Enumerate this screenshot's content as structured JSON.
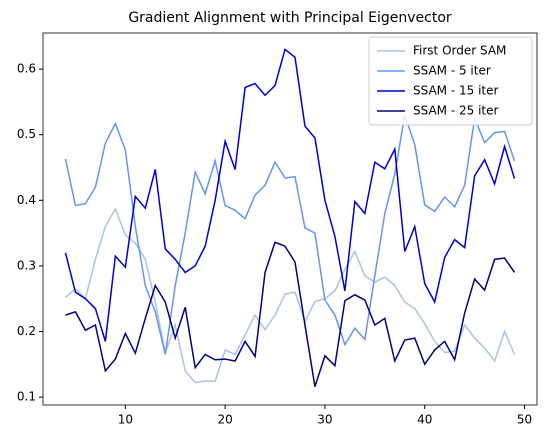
{
  "chart_data": {
    "type": "line",
    "title": "Gradient Alignment with Principal Eigenvector",
    "x": [
      4,
      5,
      6,
      7,
      8,
      9,
      10,
      11,
      12,
      13,
      14,
      15,
      16,
      17,
      18,
      19,
      20,
      21,
      22,
      23,
      24,
      25,
      26,
      27,
      28,
      29,
      30,
      31,
      32,
      33,
      34,
      35,
      36,
      37,
      38,
      39,
      40,
      41,
      42,
      43,
      44,
      45,
      46,
      47,
      48,
      49
    ],
    "series": [
      {
        "name": "First Order SAM",
        "color": "#a9c3e3",
        "values": [
          0.252,
          0.265,
          0.25,
          0.31,
          0.36,
          0.387,
          0.347,
          0.335,
          0.31,
          0.245,
          0.168,
          0.21,
          0.14,
          0.122,
          0.125,
          0.124,
          0.172,
          0.165,
          0.195,
          0.225,
          0.203,
          0.225,
          0.257,
          0.26,
          0.215,
          0.246,
          0.25,
          0.262,
          0.295,
          0.322,
          0.285,
          0.275,
          0.283,
          0.27,
          0.245,
          0.235,
          0.212,
          0.185,
          0.168,
          0.17,
          0.21,
          0.19,
          0.175,
          0.155,
          0.2,
          0.165
        ]
      },
      {
        "name": "SSAM - 5 iter",
        "color": "#6495ed",
        "values": [
          0.463,
          0.392,
          0.395,
          0.42,
          0.487,
          0.517,
          0.477,
          0.36,
          0.27,
          0.23,
          0.165,
          0.27,
          0.35,
          0.443,
          0.41,
          0.46,
          0.392,
          0.385,
          0.372,
          0.408,
          0.423,
          0.458,
          0.434,
          0.436,
          0.358,
          0.35,
          0.248,
          0.225,
          0.18,
          0.205,
          0.188,
          0.285,
          0.38,
          0.44,
          0.53,
          0.485,
          0.393,
          0.383,
          0.405,
          0.39,
          0.423,
          0.525,
          0.488,
          0.503,
          0.505,
          0.46
        ]
      },
      {
        "name": "SSAM - 15 iter",
        "color": "#0000cd",
        "values": [
          0.32,
          0.26,
          0.25,
          0.235,
          0.185,
          0.315,
          0.298,
          0.406,
          0.388,
          0.447,
          0.326,
          0.31,
          0.29,
          0.3,
          0.33,
          0.4,
          0.49,
          0.447,
          0.572,
          0.578,
          0.56,
          0.575,
          0.63,
          0.618,
          0.513,
          0.495,
          0.4,
          0.345,
          0.262,
          0.398,
          0.38,
          0.458,
          0.448,
          0.478,
          0.322,
          0.36,
          0.273,
          0.245,
          0.313,
          0.34,
          0.328,
          0.437,
          0.462,
          0.425,
          0.482,
          0.433
        ]
      },
      {
        "name": "SSAM - 25 iter",
        "color": "#000080",
        "values": [
          0.225,
          0.23,
          0.202,
          0.21,
          0.14,
          0.158,
          0.197,
          0.167,
          0.22,
          0.27,
          0.245,
          0.19,
          0.237,
          0.145,
          0.165,
          0.157,
          0.158,
          0.155,
          0.185,
          0.162,
          0.29,
          0.336,
          0.33,
          0.306,
          0.21,
          0.116,
          0.163,
          0.148,
          0.247,
          0.256,
          0.248,
          0.21,
          0.22,
          0.155,
          0.187,
          0.19,
          0.15,
          0.172,
          0.185,
          0.157,
          0.228,
          0.28,
          0.263,
          0.31,
          0.312,
          0.29
        ]
      }
    ],
    "xlim": [
      1.75,
      51.25
    ],
    "xticks": [
      10,
      20,
      30,
      40,
      50
    ],
    "ylim": [
      0.088,
      0.655
    ],
    "yticks": [
      0.1,
      0.2,
      0.3,
      0.4,
      0.5,
      0.6
    ],
    "legend": "upper right"
  }
}
